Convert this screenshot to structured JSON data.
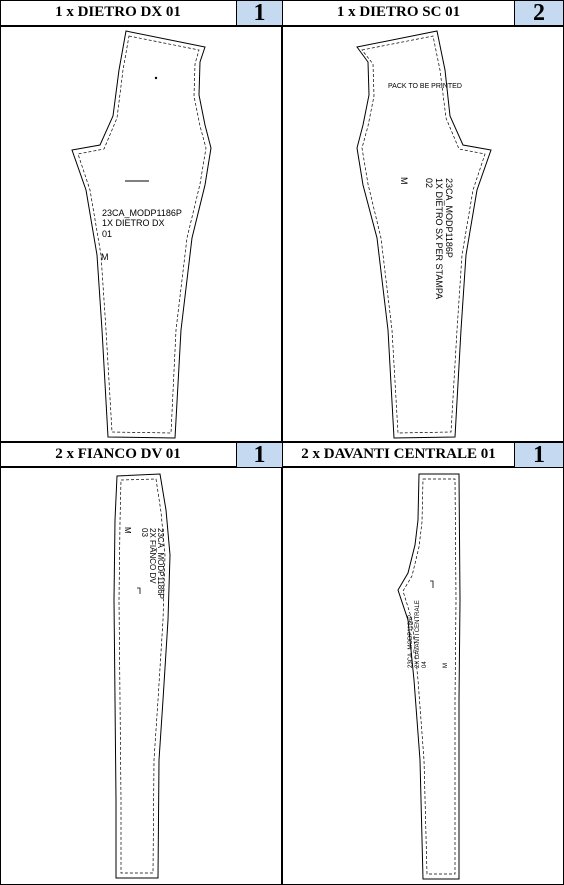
{
  "panels": [
    {
      "title": "1 x DIETRO DX 01",
      "badge": "1",
      "labels": [
        "23CA_MODP1186P",
        "1X DIETRO DX",
        "01",
        "M"
      ]
    },
    {
      "title": "1 x DIETRO SC 01",
      "badge": "2",
      "note": "PACK TO BE PRINTED",
      "labels": [
        "23CA_MODP1186P",
        "1X DIETRO SX PER STAMPA",
        "02",
        "M"
      ]
    },
    {
      "title": "2 x FIANCO DV 01",
      "badge": "1",
      "labels": [
        "23CA_MODP1186P",
        "2X FIANCO DV",
        "03",
        "M"
      ]
    },
    {
      "title": "2 x DAVANTI CENTRALE 01",
      "badge": "1",
      "labels": [
        "23CA_MODP1186P",
        "2X DAVANTI CENTRALE",
        "04",
        "M"
      ]
    }
  ]
}
